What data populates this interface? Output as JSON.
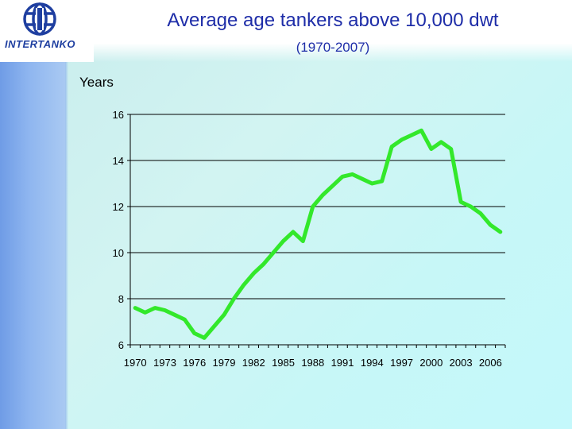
{
  "header": {
    "logo_text": "INTERTANKO",
    "title": "Average age tankers above 10,000 dwt",
    "subtitle": "(1970-2007)"
  },
  "colors": {
    "line": "#33e82b",
    "title": "#1e2da8",
    "logo": "#1f3fa0"
  },
  "chart_data": {
    "type": "line",
    "title": "Average age tankers above 10,000 dwt",
    "subtitle": "(1970-2007)",
    "xlabel": "",
    "ylabel": "Years",
    "ylim": [
      6,
      16
    ],
    "yticks": [
      6,
      8,
      10,
      12,
      14,
      16
    ],
    "x": [
      1970,
      1971,
      1972,
      1973,
      1974,
      1975,
      1976,
      1977,
      1978,
      1979,
      1980,
      1981,
      1982,
      1983,
      1984,
      1985,
      1986,
      1987,
      1988,
      1989,
      1990,
      1991,
      1992,
      1993,
      1994,
      1995,
      1996,
      1997,
      1998,
      1999,
      2000,
      2001,
      2002,
      2003,
      2004,
      2005,
      2006,
      2007
    ],
    "xtick_labels": [
      "1970",
      "1973",
      "1976",
      "1979",
      "1982",
      "1985",
      "1988",
      "1991",
      "1994",
      "1997",
      "2000",
      "2003",
      "2006"
    ],
    "xtick_years": [
      1970,
      1973,
      1976,
      1979,
      1982,
      1985,
      1988,
      1991,
      1994,
      1997,
      2000,
      2003,
      2006
    ],
    "series": [
      {
        "values": [
          7.6,
          7.4,
          7.6,
          7.5,
          7.3,
          7.1,
          6.5,
          6.3,
          6.8,
          7.3,
          8.0,
          8.6,
          9.1,
          9.5,
          10.0,
          10.5,
          10.9,
          10.5,
          12.0,
          12.5,
          12.9,
          13.3,
          13.4,
          13.2,
          13.0,
          13.1,
          14.6,
          14.9,
          15.1,
          15.3,
          14.5,
          14.8,
          14.5,
          12.2,
          12.0,
          11.7,
          11.2,
          10.9
        ]
      }
    ],
    "grid": "horizontal",
    "legend": "none"
  }
}
